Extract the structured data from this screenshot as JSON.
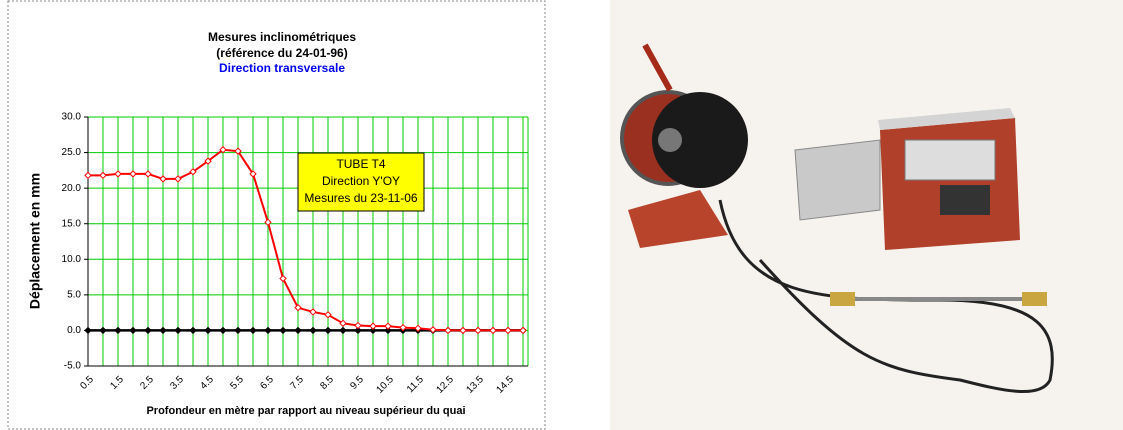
{
  "chart_data": {
    "type": "line",
    "title": "Mesures inclinométriques",
    "subtitle": "(référence du 24-01-96)",
    "subtitle2": "Direction transversale",
    "y_label": "Déplacement en mm",
    "x_label": "Profondeur en mètre par rapport au niveau supérieur du quai",
    "annotation": [
      "TUBE T4",
      "Direction Y'OY",
      "Mesures du 23-11-06"
    ],
    "categories": [
      "0.5",
      null,
      "1.5",
      null,
      "2.5",
      null,
      "3.5",
      null,
      "4.5",
      null,
      "5.5",
      null,
      "6.5",
      null,
      "7.5",
      null,
      "8.5",
      null,
      "9.5",
      null,
      "10.5",
      null,
      "11.5",
      null,
      "12.5",
      null,
      "13.5",
      null,
      "14.5",
      null
    ],
    "series": [
      {
        "color": "#000000",
        "values": [
          0,
          0,
          0,
          0,
          0,
          0,
          0,
          0,
          0,
          0,
          0,
          0,
          0,
          0,
          0,
          0,
          0,
          0,
          0,
          0,
          0,
          0,
          0,
          0,
          0,
          0,
          0,
          0,
          0,
          0
        ]
      },
      {
        "color": "#ff0000",
        "values": [
          21.8,
          21.8,
          22.0,
          22.0,
          22.0,
          21.3,
          21.3,
          22.3,
          23.8,
          25.4,
          25.2,
          22.0,
          15.2,
          7.3,
          3.2,
          2.6,
          2.2,
          1.0,
          0.7,
          0.6,
          0.6,
          0.4,
          0.3,
          0.1,
          0,
          0,
          0,
          0,
          0,
          0
        ]
      }
    ],
    "ylim": [
      -5,
      30
    ],
    "yticks": [
      {
        "value": -5,
        "label": "-5.0"
      },
      {
        "value": 0,
        "label": "0.0"
      },
      {
        "value": 5,
        "label": "5.0"
      },
      {
        "value": 10,
        "label": "10.0"
      },
      {
        "value": 15,
        "label": "15.0"
      },
      {
        "value": 20,
        "label": "20.0"
      },
      {
        "value": 25,
        "label": "25.0"
      },
      {
        "value": 30,
        "label": "30.0"
      }
    ],
    "grid": true,
    "grid_color": "#00cc00"
  }
}
